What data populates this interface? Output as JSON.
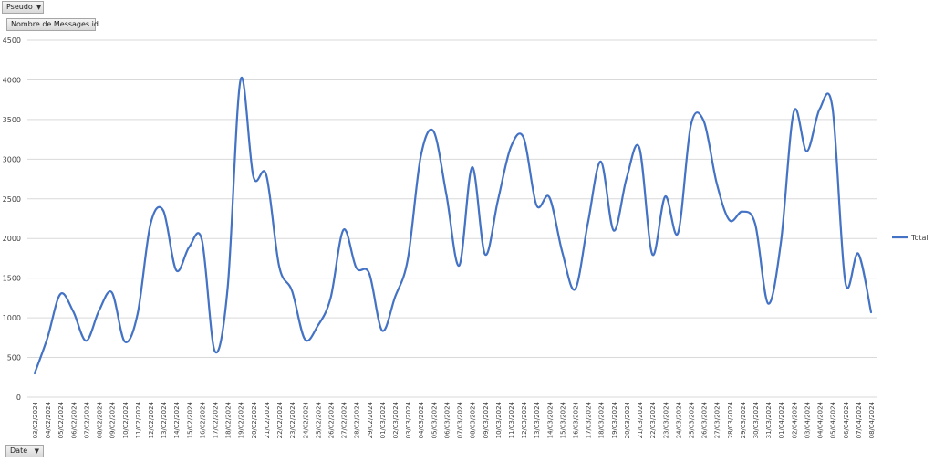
{
  "filter_button": {
    "label": "Pseudo",
    "icon": "dropdown-arrow-icon"
  },
  "measure_button": {
    "label": "Nombre de Messages id"
  },
  "axis_button": {
    "label": "Date",
    "icon": "filter-dropdown-icon"
  },
  "colors": {
    "series": "#4472c4",
    "grid": "#d9d9d9",
    "text": "#404040"
  },
  "chart_data": {
    "type": "line",
    "smooth": true,
    "grid": true,
    "legend_position": "right",
    "ylim": [
      0,
      4500
    ],
    "yticks": [
      0,
      500,
      1000,
      1500,
      2000,
      2500,
      3000,
      3500,
      4000,
      4500
    ],
    "categories": [
      "03/02/2024",
      "04/02/2024",
      "05/02/2024",
      "06/02/2024",
      "07/02/2024",
      "08/02/2024",
      "09/02/2024",
      "10/02/2024",
      "11/02/2024",
      "12/02/2024",
      "13/02/2024",
      "14/02/2024",
      "15/02/2024",
      "16/02/2024",
      "17/02/2024",
      "18/02/2024",
      "19/02/2024",
      "20/02/2024",
      "21/02/2024",
      "22/02/2024",
      "23/02/2024",
      "24/02/2024",
      "25/02/2024",
      "26/02/2024",
      "27/02/2024",
      "28/02/2024",
      "29/02/2024",
      "01/03/2024",
      "02/03/2024",
      "03/03/2024",
      "04/03/2024",
      "05/03/2024",
      "06/03/2024",
      "07/03/2024",
      "08/03/2024",
      "09/03/2024",
      "10/03/2024",
      "11/03/2024",
      "12/03/2024",
      "13/03/2024",
      "14/03/2024",
      "15/03/2024",
      "16/03/2024",
      "17/03/2024",
      "18/03/2024",
      "19/03/2024",
      "20/03/2024",
      "21/03/2024",
      "22/03/2024",
      "23/03/2024",
      "24/03/2024",
      "25/03/2024",
      "26/03/2024",
      "27/03/2024",
      "28/03/2024",
      "29/03/2024",
      "30/03/2024",
      "31/03/2024",
      "01/04/2024",
      "02/04/2024",
      "03/04/2024",
      "04/04/2024",
      "05/04/2024",
      "06/04/2024",
      "07/04/2024",
      "08/04/2024"
    ],
    "series": [
      {
        "name": "Total",
        "color": "#4472c4",
        "values": [
          300,
          750,
          1300,
          1080,
          710,
          1090,
          1320,
          700,
          1050,
          2180,
          2350,
          1600,
          1890,
          1980,
          580,
          1380,
          4000,
          2780,
          2800,
          1650,
          1340,
          730,
          900,
          1250,
          2110,
          1630,
          1560,
          840,
          1260,
          1740,
          3030,
          3350,
          2550,
          1660,
          2900,
          1800,
          2480,
          3150,
          3270,
          2420,
          2520,
          1830,
          1360,
          2200,
          2970,
          2100,
          2760,
          3140,
          1800,
          2530,
          2070,
          3430,
          3480,
          2700,
          2230,
          2340,
          2180,
          1180,
          1960,
          3600,
          3100,
          3630,
          3650,
          1450,
          1810,
          1070
        ]
      }
    ]
  }
}
